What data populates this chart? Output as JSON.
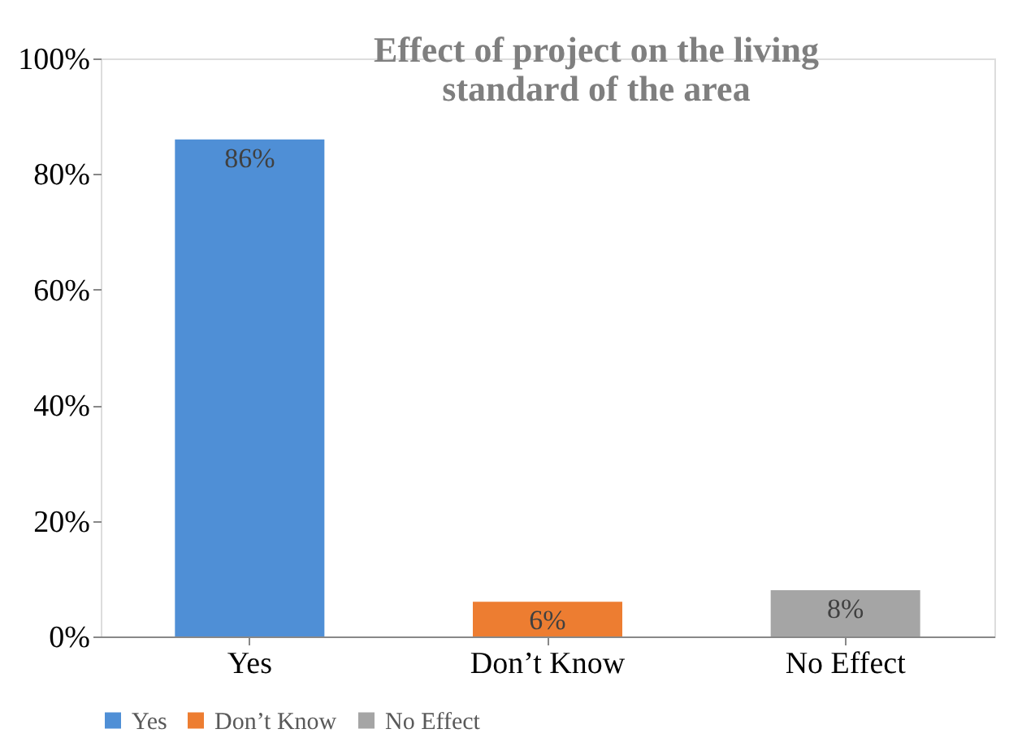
{
  "chart_data": {
    "type": "bar",
    "title": [
      "Effect of project on the living",
      "standard of the area"
    ],
    "categories": [
      "Yes",
      "Don’t Know",
      "No Effect"
    ],
    "series": [
      {
        "name": "Yes",
        "color": "#4f8fd6",
        "values": [
          86,
          null,
          null
        ],
        "value_labels": [
          "86%",
          null,
          null
        ]
      },
      {
        "name": "Don’t Know",
        "color": "#ed7d31",
        "values": [
          null,
          6,
          null
        ],
        "value_labels": [
          null,
          "6%",
          null
        ]
      },
      {
        "name": "No Effect",
        "color": "#a5a5a5",
        "values": [
          null,
          null,
          8
        ],
        "value_labels": [
          null,
          null,
          "8%"
        ]
      }
    ],
    "ylim": [
      0,
      100
    ],
    "yticks": [
      {
        "value": 0,
        "label": "0%"
      },
      {
        "value": 20,
        "label": "20%"
      },
      {
        "value": 40,
        "label": "40%"
      },
      {
        "value": 60,
        "label": "60%"
      },
      {
        "value": 80,
        "label": "80%"
      },
      {
        "value": 100,
        "label": "100%"
      }
    ],
    "grid": false,
    "legend": "bottom"
  }
}
